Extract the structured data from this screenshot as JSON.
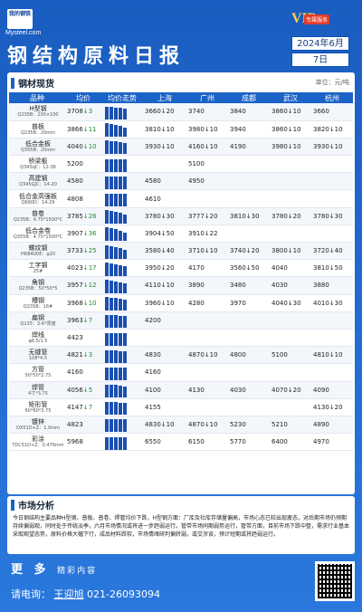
{
  "header": {
    "logo_text": "我的钢铁",
    "logo_sub": "Mysteel.com",
    "vip": "VIP",
    "vip_tag": "专属服务",
    "title": "钢结构原料日报",
    "month": "2024年6月",
    "day": "7日"
  },
  "section_prices": {
    "title": "钢材现货",
    "unit": "单位：元/吨"
  },
  "columns": [
    "品种",
    "均价",
    "均价走势",
    "上海",
    "广州",
    "成都",
    "武汉",
    "杭州"
  ],
  "rows": [
    {
      "name": "H型钢",
      "spec": "Q235B：200×100",
      "avg": "3708",
      "avg_chg": "↓3",
      "avg_dir": "down",
      "bars": [
        14,
        14,
        13,
        13,
        12
      ],
      "sh": "3660↓20",
      "sh_d": "down",
      "gz": "3740",
      "gz_d": "",
      "cd": "3840",
      "cd_d": "",
      "wh": "3860↓10",
      "wh_d": "down",
      "hz": "3660",
      "hz_d": ""
    },
    {
      "name": "普板",
      "spec": "Q235B：20mm",
      "avg": "3866",
      "avg_chg": "↓11",
      "avg_dir": "down",
      "bars": [
        15,
        14,
        13,
        12,
        10
      ],
      "sh": "3810↓10",
      "sh_d": "down",
      "gz": "3980↓10",
      "gz_d": "down",
      "cd": "3940",
      "cd_d": "",
      "wh": "3860↓10",
      "wh_d": "down",
      "hz": "3820↓10",
      "hz_d": "down"
    },
    {
      "name": "低合金板",
      "spec": "Q355B：20mm",
      "avg": "4040",
      "avg_chg": "↓10",
      "avg_dir": "down",
      "bars": [
        15,
        14,
        14,
        13,
        12
      ],
      "sh": "3930↓10",
      "sh_d": "down",
      "gz": "4160↓10",
      "gz_d": "down",
      "cd": "4190",
      "cd_d": "",
      "wh": "3980↓10",
      "wh_d": "down",
      "hz": "3930↓10",
      "hz_d": "down"
    },
    {
      "name": "桥梁板",
      "spec": "Q345qC：12-36",
      "avg": "5200",
      "avg_chg": "",
      "avg_dir": "",
      "bars": [
        14,
        14,
        14,
        14,
        14
      ],
      "sh": "",
      "sh_d": "",
      "gz": "5100",
      "gz_d": "",
      "cd": "",
      "cd_d": "",
      "wh": "",
      "wh_d": "",
      "hz": "",
      "hz_d": ""
    },
    {
      "name": "高建钢",
      "spec": "Q345GJC：14-20",
      "avg": "4580",
      "avg_chg": "",
      "avg_dir": "",
      "bars": [
        14,
        14,
        14,
        14,
        14
      ],
      "sh": "4580",
      "sh_d": "",
      "gz": "4950",
      "gz_d": "",
      "cd": "",
      "cd_d": "",
      "wh": "",
      "wh_d": "",
      "hz": "",
      "hz_d": ""
    },
    {
      "name": "低合金高强板",
      "spec": "Q690D：14-29",
      "avg": "4808",
      "avg_chg": "",
      "avg_dir": "",
      "bars": [
        14,
        14,
        14,
        14,
        14
      ],
      "sh": "4610",
      "sh_d": "",
      "gz": "",
      "gz_d": "",
      "cd": "",
      "cd_d": "",
      "wh": "",
      "wh_d": "",
      "hz": "",
      "hz_d": ""
    },
    {
      "name": "普卷",
      "spec": "Q235B：4.75*1500*C",
      "avg": "3785",
      "avg_chg": "↓26",
      "avg_dir": "down",
      "bars": [
        15,
        14,
        13,
        12,
        10
      ],
      "sh": "3780↓30",
      "sh_d": "down",
      "gz": "3777↓20",
      "gz_d": "down",
      "cd": "3810↓30",
      "cd_d": "down",
      "wh": "3780↓20",
      "wh_d": "down",
      "hz": "3780↓30",
      "hz_d": "down"
    },
    {
      "name": "低合金卷",
      "spec": "Q355B：4.75*1500*C",
      "avg": "3907",
      "avg_chg": "↓36",
      "avg_dir": "down",
      "bars": [
        15,
        14,
        13,
        11,
        9
      ],
      "sh": "3904↓50",
      "sh_d": "down",
      "gz": "3910↓22",
      "gz_d": "down",
      "cd": "",
      "cd_d": "",
      "wh": "",
      "wh_d": "",
      "hz": "",
      "hz_d": ""
    },
    {
      "name": "螺纹钢",
      "spec": "HRB400E：φ20",
      "avg": "3733",
      "avg_chg": "↓25",
      "avg_dir": "down",
      "bars": [
        15,
        14,
        13,
        12,
        10
      ],
      "sh": "3580↓40",
      "sh_d": "down",
      "gz": "3710↓10",
      "gz_d": "down",
      "cd": "3740↓20",
      "cd_d": "down",
      "wh": "3800↓10",
      "wh_d": "down",
      "hz": "3720↓40",
      "hz_d": "down"
    },
    {
      "name": "工字钢",
      "spec": "25#",
      "avg": "4023",
      "avg_chg": "↓17",
      "avg_dir": "down",
      "bars": [
        15,
        14,
        13,
        12,
        11
      ],
      "sh": "3950↓20",
      "sh_d": "down",
      "gz": "4170",
      "gz_d": "",
      "cd": "3560↓50",
      "cd_d": "down",
      "wh": "4040",
      "wh_d": "",
      "hz": "3810↓50",
      "hz_d": "down"
    },
    {
      "name": "角钢",
      "spec": "Q235B：50*50*5",
      "avg": "3957",
      "avg_chg": "↓12",
      "avg_dir": "down",
      "bars": [
        15,
        14,
        13,
        12,
        11
      ],
      "sh": "4110↓10",
      "sh_d": "down",
      "gz": "3890",
      "gz_d": "",
      "cd": "3480",
      "cd_d": "",
      "wh": "4030",
      "wh_d": "",
      "hz": "3880",
      "hz_d": ""
    },
    {
      "name": "槽钢",
      "spec": "Q235B：16#",
      "avg": "3968",
      "avg_chg": "↓10",
      "avg_dir": "down",
      "bars": [
        15,
        14,
        14,
        13,
        12
      ],
      "sh": "3960↓10",
      "sh_d": "down",
      "gz": "4280",
      "gz_d": "",
      "cd": "3970",
      "cd_d": "",
      "wh": "4040↓30",
      "wh_d": "down",
      "hz": "4010↓30",
      "hz_d": "down"
    },
    {
      "name": "扁钢",
      "spec": "Q235：3-6*厚度",
      "avg": "3963",
      "avg_chg": "↓7",
      "avg_dir": "down",
      "bars": [
        14,
        14,
        14,
        13,
        13
      ],
      "sh": "4200",
      "sh_d": "",
      "gz": "",
      "gz_d": "",
      "cd": "",
      "cd_d": "",
      "wh": "",
      "wh_d": "",
      "hz": "",
      "hz_d": ""
    },
    {
      "name": "焊线",
      "spec": "φ6.5/1.5",
      "avg": "4423",
      "avg_chg": "",
      "avg_dir": "",
      "bars": [
        14,
        14,
        14,
        14,
        14
      ],
      "sh": "",
      "sh_d": "",
      "gz": "",
      "gz_d": "",
      "cd": "",
      "cd_d": "",
      "wh": "",
      "wh_d": "",
      "hz": "",
      "hz_d": ""
    },
    {
      "name": "无缝管",
      "spec": "108*4.5",
      "avg": "4821",
      "avg_chg": "↓3",
      "avg_dir": "down",
      "bars": [
        14,
        14,
        14,
        13,
        13
      ],
      "sh": "4830",
      "sh_d": "",
      "gz": "4870↓10",
      "gz_d": "down",
      "cd": "4800",
      "cd_d": "",
      "wh": "5100",
      "wh_d": "",
      "hz": "4810↓10",
      "hz_d": "down"
    },
    {
      "name": "方管",
      "spec": "50*50*2.75",
      "avg": "4160",
      "avg_chg": "",
      "avg_dir": "",
      "bars": [
        14,
        14,
        14,
        14,
        14
      ],
      "sh": "4160",
      "sh_d": "",
      "gz": "",
      "gz_d": "",
      "cd": "",
      "cd_d": "",
      "wh": "",
      "wh_d": "",
      "hz": "",
      "hz_d": ""
    },
    {
      "name": "焊管",
      "spec": "4寸*3.75",
      "avg": "4056",
      "avg_chg": "↓5",
      "avg_dir": "down",
      "bars": [
        14,
        14,
        14,
        13,
        12
      ],
      "sh": "4100",
      "sh_d": "",
      "gz": "4130",
      "gz_d": "",
      "cd": "4030",
      "cd_d": "",
      "wh": "4070↓20",
      "wh_d": "down",
      "hz": "4090",
      "hz_d": ""
    },
    {
      "name": "矩形管",
      "spec": "60*80*3.75",
      "avg": "4147",
      "avg_chg": "↓7",
      "avg_dir": "down",
      "bars": [
        14,
        14,
        14,
        13,
        13
      ],
      "sh": "4155",
      "sh_d": "",
      "gz": "",
      "gz_d": "",
      "cd": "",
      "cd_d": "",
      "wh": "",
      "wh_d": "",
      "hz": "4130↓20",
      "hz_d": "down"
    },
    {
      "name": "镀锌",
      "spec": "DX51D+Z：1.0mm",
      "avg": "4823",
      "avg_chg": "",
      "avg_dir": "",
      "bars": [
        14,
        14,
        14,
        14,
        14
      ],
      "sh": "4830↓10",
      "sh_d": "down",
      "gz": "4870↓10",
      "gz_d": "down",
      "cd": "5230",
      "cd_d": "",
      "wh": "5210",
      "wh_d": "",
      "hz": "4890",
      "hz_d": ""
    },
    {
      "name": "彩涂",
      "spec": "TDC51D+Z：0.476mm",
      "avg": "5968",
      "avg_chg": "",
      "avg_dir": "",
      "bars": [
        14,
        14,
        14,
        14,
        14
      ],
      "sh": "6550",
      "sh_d": "",
      "gz": "6150",
      "gz_d": "",
      "cd": "5770",
      "cd_d": "",
      "wh": "6400",
      "wh_d": "",
      "hz": "4970",
      "hz_d": ""
    }
  ],
  "section_analysis": {
    "title": "市场分析",
    "text": "今日钢结构主要品种H型钢、普板、普卷、焊管均价下跌，H型钢方面：厂库及社库存储量偏高，市场心态已较出现疲态，对后期市场仍预期持续偏弱观，同时处于传统淡季，六月市场情况或将进一步趋弱运行。管带市场同期弱势运行，管带方面，目前市场下跌中整，需求行业基本采取观望态势，原料价格大幅下行，成品材料跌软，市场情绪研判偏转弱，或交涉谈，预计短期或将趋弱运行。"
  },
  "footer": {
    "more": "更 多",
    "more_sub": "精彩内容",
    "contact_label": "请电询：",
    "contact_name": "王迎旭",
    "contact_phone": "021-26093094"
  }
}
